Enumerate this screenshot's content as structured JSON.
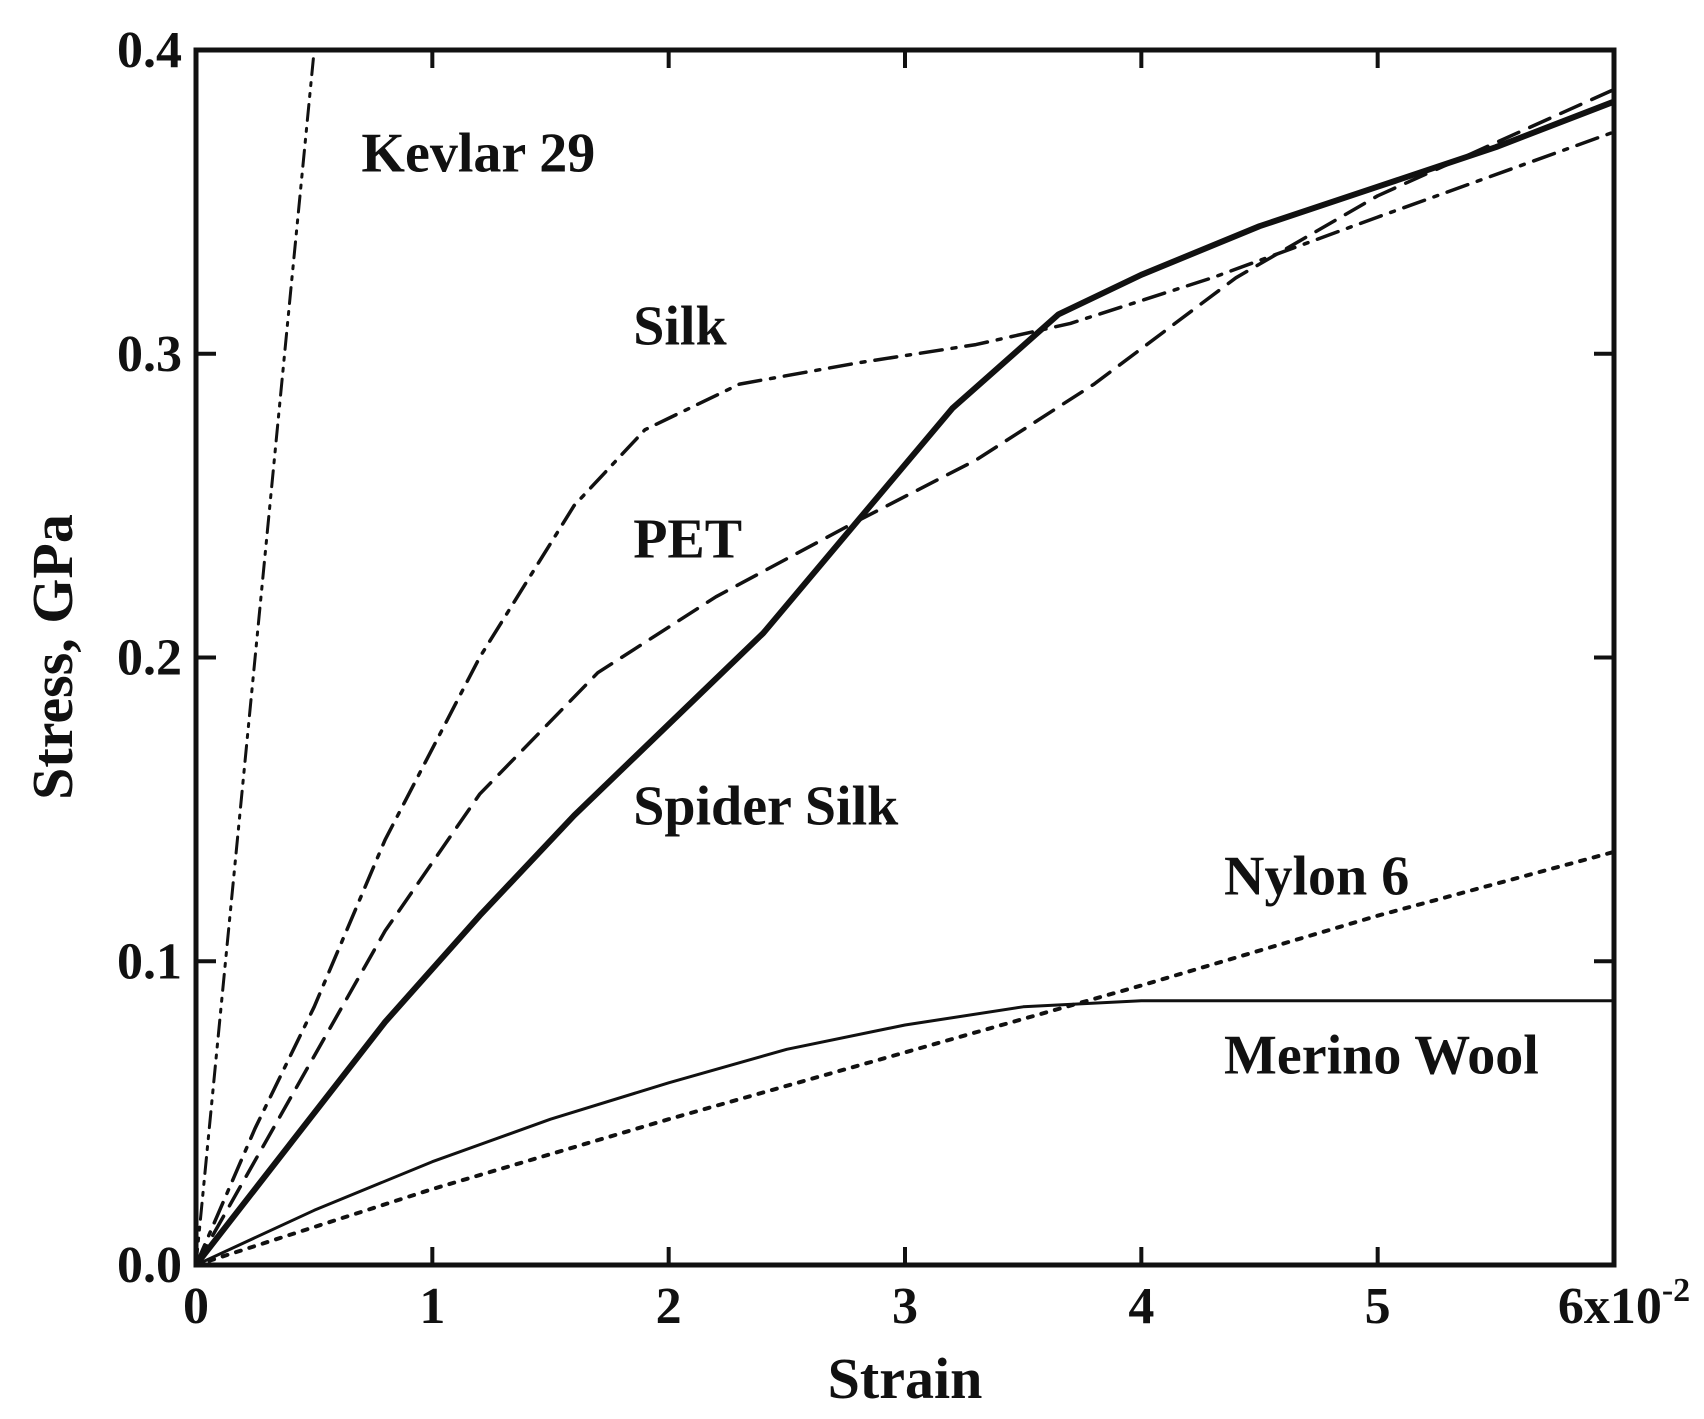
{
  "chart_data": {
    "type": "line",
    "title": "",
    "xlabel": "Strain",
    "ylabel": "Stress, GPa",
    "xlim": [
      0,
      6
    ],
    "ylim": [
      0,
      0.4
    ],
    "x_ticks": [
      0,
      1,
      2,
      3,
      4,
      5,
      6
    ],
    "x_tick_labels": [
      "0",
      "1",
      "2",
      "3",
      "4",
      "5",
      "6x10"
    ],
    "x_tick_exponent": "-2",
    "y_ticks": [
      0,
      0.1,
      0.2,
      0.3,
      0.4
    ],
    "y_tick_labels": [
      "0.0",
      "0.1",
      "0.2",
      "0.3",
      "0.4"
    ],
    "grid": false,
    "series": [
      {
        "name": "Kevlar 29",
        "style": "dash-dot-dot",
        "x": [
          0,
          0.1,
          0.2,
          0.3,
          0.4,
          0.5
        ],
        "y": [
          0,
          0.08,
          0.16,
          0.24,
          0.32,
          0.4
        ],
        "label_at": [
          0.7,
          0.36
        ]
      },
      {
        "name": "Silk",
        "style": "dash-dot",
        "x": [
          0,
          0.25,
          0.5,
          0.8,
          1.2,
          1.6,
          1.9,
          2.3,
          2.8,
          3.3,
          3.7,
          4.3,
          5.0,
          6.0
        ],
        "y": [
          0,
          0.045,
          0.085,
          0.14,
          0.2,
          0.25,
          0.275,
          0.29,
          0.297,
          0.303,
          0.31,
          0.325,
          0.345,
          0.373
        ],
        "label_at": [
          1.85,
          0.303
        ]
      },
      {
        "name": "PET",
        "style": "dashed",
        "x": [
          0,
          0.4,
          0.8,
          1.2,
          1.7,
          2.2,
          2.8,
          3.3,
          3.8,
          4.4,
          5.0,
          6.0
        ],
        "y": [
          0,
          0.055,
          0.11,
          0.155,
          0.195,
          0.22,
          0.245,
          0.265,
          0.29,
          0.325,
          0.352,
          0.387
        ],
        "label_at": [
          1.85,
          0.233
        ]
      },
      {
        "name": "Spider Silk",
        "style": "solid",
        "x": [
          0,
          0.4,
          0.8,
          1.2,
          1.6,
          2.0,
          2.4,
          2.8,
          3.2,
          3.65,
          4.0,
          4.5,
          5.0,
          5.5,
          6.0
        ],
        "y": [
          0,
          0.04,
          0.08,
          0.115,
          0.148,
          0.178,
          0.208,
          0.245,
          0.282,
          0.313,
          0.326,
          0.342,
          0.355,
          0.368,
          0.383
        ],
        "label_at": [
          1.85,
          0.145
        ]
      },
      {
        "name": "Nylon 6",
        "style": "dotted",
        "x": [
          0,
          1,
          2,
          3,
          4,
          5,
          6
        ],
        "y": [
          0,
          0.025,
          0.048,
          0.07,
          0.092,
          0.115,
          0.136
        ],
        "label_at": [
          4.35,
          0.122
        ]
      },
      {
        "name": "Merino Wool",
        "style": "solid-thin",
        "x": [
          0,
          0.5,
          1,
          1.5,
          2,
          2.5,
          3,
          3.5,
          4,
          5,
          6
        ],
        "y": [
          0,
          0.018,
          0.034,
          0.048,
          0.06,
          0.071,
          0.079,
          0.085,
          0.087,
          0.087,
          0.087
        ],
        "label_at": [
          4.35,
          0.063
        ]
      }
    ]
  }
}
